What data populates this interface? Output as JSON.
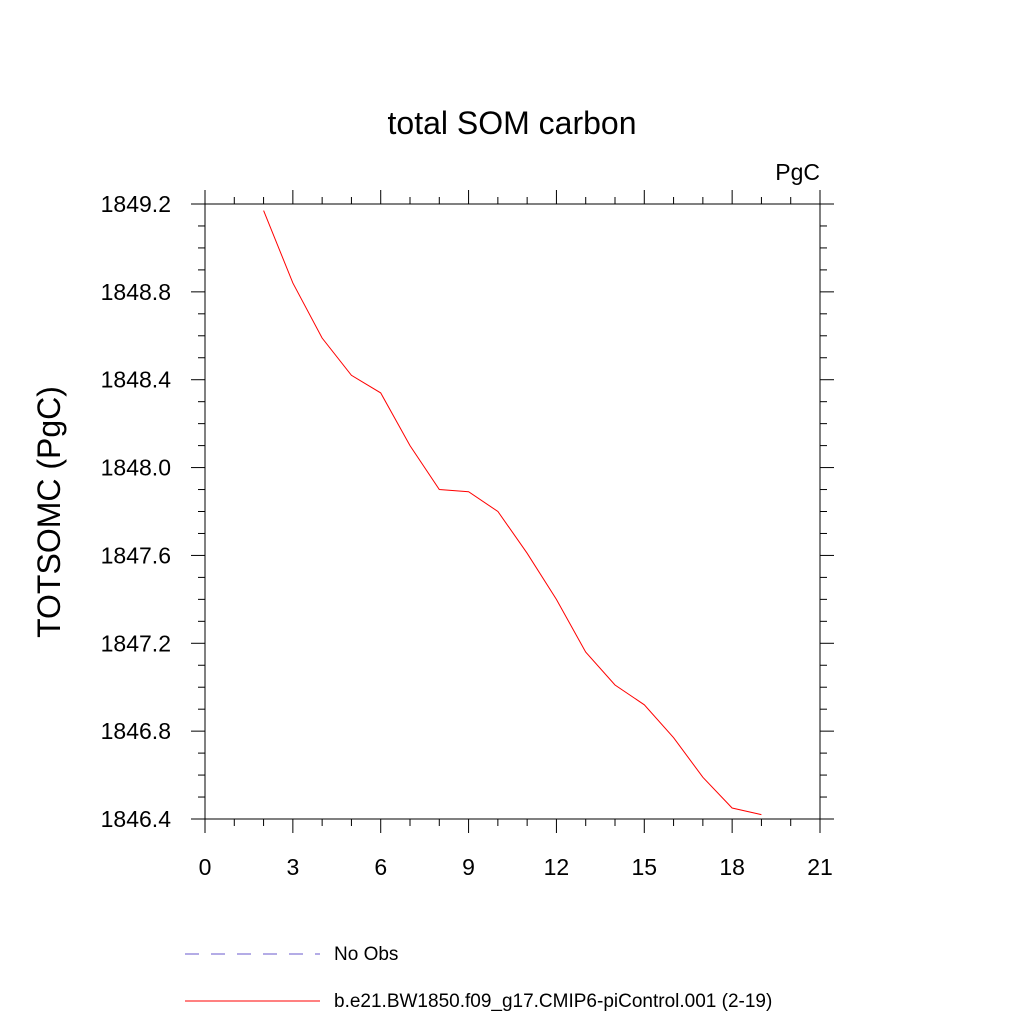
{
  "chart_data": {
    "type": "line",
    "title": "total SOM carbon",
    "units_label": "PgC",
    "ylabel": "TOTSOMC  (PgC)",
    "xlabel": "",
    "xlim": [
      0,
      21
    ],
    "ylim": [
      1846.4,
      1849.2
    ],
    "x_ticks": [
      0,
      3,
      6,
      9,
      12,
      15,
      18,
      21
    ],
    "y_ticks": [
      1846.4,
      1846.8,
      1847.2,
      1847.6,
      1848.0,
      1848.4,
      1848.8,
      1849.2
    ],
    "x_tick_labels": [
      "0",
      "3",
      "6",
      "9",
      "12",
      "15",
      "18",
      "21"
    ],
    "y_tick_labels": [
      "1846.4",
      "1846.8",
      "1847.2",
      "1847.6",
      "1848.0",
      "1848.4",
      "1848.8",
      "1849.2"
    ],
    "grid": false,
    "series": [
      {
        "name": "b.e21.BW1850.f09_g17.CMIP6-piControl.001 (2-19)",
        "color": "#ff0000",
        "dash": "solid",
        "x": [
          2,
          3,
          4,
          5,
          6,
          7,
          8,
          9,
          10,
          11,
          12,
          13,
          14,
          15,
          16,
          17,
          18,
          19
        ],
        "y": [
          1849.17,
          1848.84,
          1848.59,
          1848.42,
          1848.34,
          1848.1,
          1847.9,
          1847.89,
          1847.8,
          1847.61,
          1847.4,
          1847.16,
          1847.01,
          1846.92,
          1846.77,
          1846.59,
          1846.45,
          1846.42
        ]
      }
    ],
    "legend": [
      {
        "label": "No Obs",
        "color": "#6a5acd",
        "dash": "dashed"
      },
      {
        "label": "b.e21.BW1850.f09_g17.CMIP6-piControl.001 (2-19)",
        "color": "#ff0000",
        "dash": "solid"
      }
    ]
  }
}
